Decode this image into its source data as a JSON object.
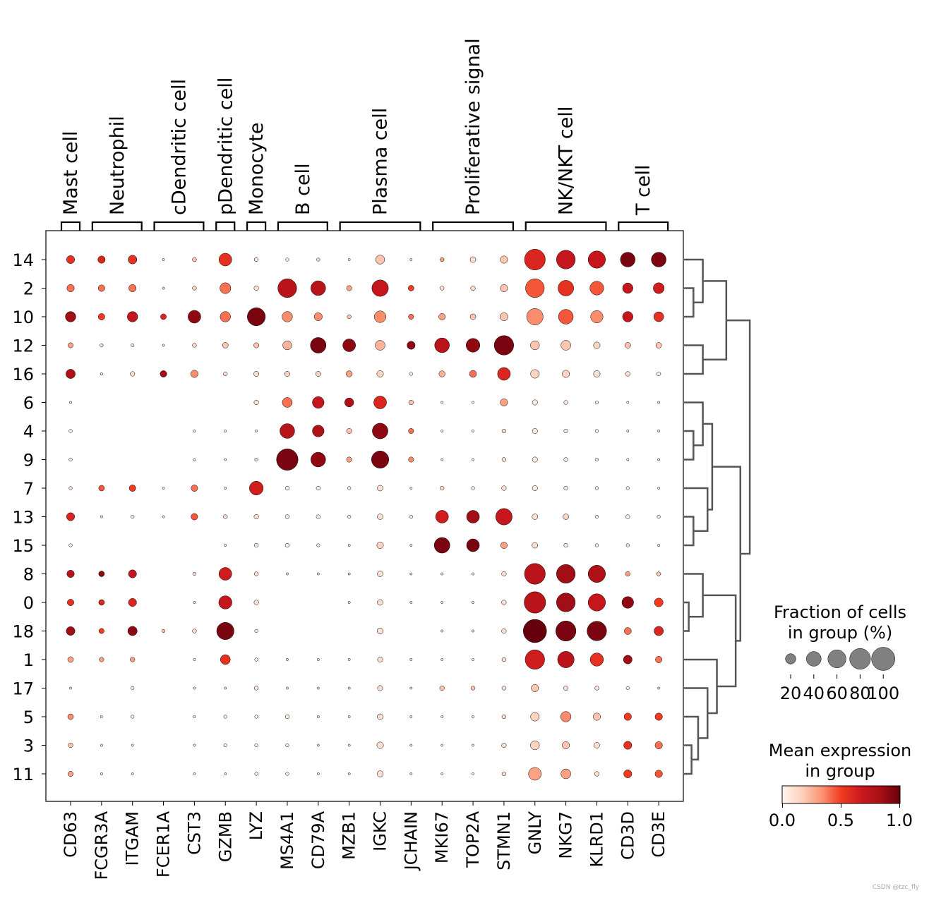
{
  "chart_data": {
    "type": "dotplot",
    "genes": [
      "CD63",
      "FCGR3A",
      "ITGAM",
      "FCER1A",
      "CST3",
      "GZMB",
      "LYZ",
      "MS4A1",
      "CD79A",
      "MZB1",
      "IGKC",
      "JCHAIN",
      "MKI67",
      "TOP2A",
      "STMN1",
      "GNLY",
      "NKG7",
      "KLRD1",
      "CD3D",
      "CD3E"
    ],
    "groups": [
      "14",
      "2",
      "10",
      "12",
      "16",
      "6",
      "4",
      "9",
      "7",
      "13",
      "15",
      "8",
      "0",
      "18",
      "1",
      "17",
      "5",
      "3",
      "11"
    ],
    "cell_types": [
      {
        "label": "Mast cell",
        "start": 0,
        "end": 0
      },
      {
        "label": "Neutrophil",
        "start": 1,
        "end": 2
      },
      {
        "label": "cDendritic cell",
        "start": 3,
        "end": 4
      },
      {
        "label": "pDendritic cell",
        "start": 5,
        "end": 5
      },
      {
        "label": "Monocyte",
        "start": 6,
        "end": 6
      },
      {
        "label": "B cell",
        "start": 7,
        "end": 8
      },
      {
        "label": "Plasma cell",
        "start": 9,
        "end": 11
      },
      {
        "label": "Proliferative signal",
        "start": 12,
        "end": 14
      },
      {
        "label": "NK/NKT cell",
        "start": 15,
        "end": 17
      },
      {
        "label": "T cell",
        "start": 18,
        "end": 19
      }
    ],
    "fraction_pct": [
      [
        12,
        10,
        14,
        1,
        3,
        30,
        3,
        2,
        2,
        1,
        15,
        1,
        3,
        6,
        10,
        80,
        65,
        55,
        40,
        40
      ],
      [
        10,
        8,
        10,
        1,
        3,
        22,
        4,
        65,
        40,
        5,
        50,
        6,
        3,
        4,
        10,
        65,
        45,
        35,
        20,
        22
      ],
      [
        20,
        8,
        20,
        6,
        30,
        20,
        60,
        20,
        12,
        3,
        25,
        5,
        8,
        6,
        12,
        50,
        40,
        28,
        20,
        18
      ],
      [
        5,
        2,
        2,
        1,
        3,
        6,
        5,
        15,
        45,
        30,
        18,
        12,
        40,
        35,
        70,
        15,
        18,
        8,
        6,
        6
      ],
      [
        16,
        1,
        4,
        8,
        10,
        3,
        5,
        5,
        5,
        7,
        8,
        2,
        7,
        9,
        30,
        14,
        10,
        8,
        4,
        3
      ],
      [
        1,
        0,
        0,
        0,
        0,
        0,
        4,
        18,
        25,
        15,
        30,
        4,
        1,
        1,
        10,
        5,
        3,
        2,
        1,
        1
      ],
      [
        2,
        0,
        0,
        0,
        1,
        1,
        1,
        40,
        25,
        5,
        45,
        5,
        1,
        1,
        3,
        5,
        3,
        2,
        1,
        1
      ],
      [
        2,
        0,
        0,
        0,
        1,
        1,
        2,
        85,
        40,
        5,
        55,
        5,
        1,
        1,
        3,
        5,
        3,
        2,
        1,
        1
      ],
      [
        2,
        6,
        8,
        1,
        8,
        1,
        35,
        3,
        3,
        2,
        6,
        1,
        3,
        2,
        4,
        5,
        3,
        2,
        2,
        1
      ],
      [
        12,
        1,
        2,
        1,
        8,
        3,
        4,
        3,
        3,
        2,
        6,
        2,
        30,
        30,
        50,
        6,
        6,
        2,
        3,
        2
      ],
      [
        2,
        0,
        0,
        0,
        0,
        1,
        3,
        3,
        2,
        1,
        8,
        1,
        45,
        30,
        8,
        6,
        3,
        2,
        2,
        1
      ],
      [
        10,
        6,
        12,
        0,
        2,
        30,
        3,
        1,
        1,
        1,
        6,
        1,
        1,
        1,
        4,
        80,
        65,
        55,
        4,
        3
      ],
      [
        8,
        6,
        12,
        0,
        1,
        32,
        4,
        0,
        0,
        1,
        6,
        1,
        1,
        1,
        4,
        85,
        65,
        55,
        25,
        14
      ],
      [
        14,
        5,
        16,
        2,
        3,
        55,
        2,
        0,
        0,
        0,
        7,
        0,
        1,
        1,
        4,
        100,
        75,
        70,
        9,
        16
      ],
      [
        6,
        4,
        4,
        0,
        1,
        18,
        2,
        1,
        1,
        1,
        5,
        1,
        1,
        1,
        3,
        70,
        50,
        32,
        14,
        8
      ],
      [
        1,
        0,
        2,
        0,
        1,
        1,
        3,
        1,
        1,
        1,
        5,
        1,
        4,
        3,
        3,
        10,
        4,
        3,
        2,
        1
      ],
      [
        6,
        1,
        2,
        0,
        1,
        2,
        2,
        3,
        1,
        1,
        6,
        1,
        1,
        1,
        3,
        14,
        20,
        10,
        10,
        10
      ],
      [
        4,
        1,
        1,
        0,
        1,
        2,
        2,
        2,
        1,
        1,
        8,
        1,
        1,
        1,
        4,
        15,
        10,
        6,
        12,
        10
      ],
      [
        5,
        1,
        1,
        0,
        1,
        1,
        2,
        2,
        1,
        1,
        7,
        1,
        1,
        1,
        3,
        30,
        18,
        4,
        12,
        10
      ]
    ],
    "mean_expression": [
      [
        0.55,
        0.6,
        0.55,
        0.05,
        0.2,
        0.55,
        0.1,
        0.05,
        0.1,
        0.05,
        0.2,
        0.05,
        0.3,
        0.1,
        0.2,
        0.6,
        0.7,
        0.7,
        0.95,
        0.95
      ],
      [
        0.4,
        0.4,
        0.4,
        0.05,
        0.15,
        0.4,
        0.1,
        0.75,
        0.75,
        0.3,
        0.7,
        0.5,
        0.1,
        0.1,
        0.2,
        0.45,
        0.55,
        0.45,
        0.7,
        0.65
      ],
      [
        0.85,
        0.5,
        0.7,
        0.6,
        0.9,
        0.4,
        0.95,
        0.35,
        0.35,
        0.2,
        0.35,
        0.4,
        0.3,
        0.2,
        0.2,
        0.35,
        0.45,
        0.35,
        0.7,
        0.55
      ],
      [
        0.3,
        0.1,
        0.1,
        0.05,
        0.1,
        0.2,
        0.2,
        0.25,
        0.95,
        0.9,
        0.25,
        0.9,
        0.75,
        0.9,
        0.95,
        0.2,
        0.2,
        0.15,
        0.2,
        0.2
      ],
      [
        0.8,
        0.1,
        0.1,
        0.85,
        0.35,
        0.1,
        0.1,
        0.15,
        0.15,
        0.3,
        0.15,
        0.05,
        0.25,
        0.4,
        0.6,
        0.15,
        0.15,
        0.1,
        0.1,
        0.05
      ],
      [
        0.05,
        0,
        0,
        0,
        0,
        0,
        0.1,
        0.4,
        0.7,
        0.8,
        0.6,
        0.2,
        0.05,
        0.05,
        0.3,
        0.05,
        0.05,
        0.05,
        0.05,
        0.05
      ],
      [
        0.05,
        0,
        0,
        0,
        0.05,
        0.05,
        0.05,
        0.75,
        0.8,
        0.2,
        0.9,
        0.4,
        0.05,
        0.05,
        0.1,
        0.05,
        0.05,
        0.05,
        0.05,
        0.05
      ],
      [
        0.05,
        0,
        0,
        0,
        0.05,
        0.05,
        0.1,
        0.95,
        0.9,
        0.3,
        0.95,
        0.35,
        0.05,
        0.05,
        0.1,
        0.05,
        0.05,
        0.05,
        0.05,
        0.05
      ],
      [
        0.1,
        0.45,
        0.5,
        0.05,
        0.4,
        0.05,
        0.65,
        0.05,
        0.05,
        0.05,
        0.1,
        0.05,
        0.1,
        0.05,
        0.1,
        0.05,
        0.05,
        0.05,
        0.05,
        0.05
      ],
      [
        0.6,
        0.05,
        0.05,
        0.05,
        0.45,
        0.1,
        0.1,
        0.05,
        0.05,
        0.05,
        0.1,
        0.05,
        0.65,
        0.85,
        0.7,
        0.1,
        0.15,
        0.05,
        0.05,
        0.05
      ],
      [
        0.05,
        0,
        0,
        0,
        0,
        0.05,
        0.05,
        0.05,
        0.05,
        0.05,
        0.15,
        0.05,
        0.95,
        0.95,
        0.3,
        0.1,
        0.05,
        0.05,
        0.05,
        0.05
      ],
      [
        0.75,
        0.9,
        0.7,
        0,
        0.1,
        0.65,
        0.1,
        0.05,
        0.05,
        0.05,
        0.1,
        0.05,
        0.05,
        0.05,
        0.1,
        0.75,
        0.85,
        0.8,
        0.3,
        0.2
      ],
      [
        0.55,
        0.6,
        0.6,
        0,
        0.05,
        0.7,
        0.1,
        0,
        0,
        0.05,
        0.1,
        0.05,
        0.05,
        0.05,
        0.1,
        0.75,
        0.85,
        0.7,
        0.9,
        0.5
      ],
      [
        0.85,
        0.5,
        0.9,
        0.2,
        0.1,
        0.95,
        0.05,
        0,
        0,
        0,
        0.1,
        0,
        0.05,
        0.05,
        0.1,
        1.0,
        0.95,
        0.95,
        0.4,
        0.6
      ],
      [
        0.3,
        0.3,
        0.3,
        0,
        0.05,
        0.55,
        0.05,
        0.05,
        0.05,
        0.05,
        0.1,
        0.05,
        0.05,
        0.05,
        0.1,
        0.65,
        0.75,
        0.55,
        0.85,
        0.4
      ],
      [
        0.05,
        0,
        0.05,
        0,
        0.05,
        0.05,
        0.1,
        0.05,
        0.05,
        0.05,
        0.1,
        0.05,
        0.2,
        0.2,
        0.1,
        0.2,
        0.1,
        0.1,
        0.05,
        0.05
      ],
      [
        0.35,
        0.05,
        0.05,
        0,
        0.05,
        0.05,
        0.05,
        0.05,
        0.05,
        0.05,
        0.1,
        0.05,
        0.05,
        0.05,
        0.1,
        0.15,
        0.35,
        0.2,
        0.5,
        0.5
      ],
      [
        0.2,
        0.05,
        0.05,
        0,
        0.05,
        0.05,
        0.05,
        0.05,
        0.05,
        0.05,
        0.1,
        0.05,
        0.05,
        0.05,
        0.1,
        0.15,
        0.2,
        0.1,
        0.55,
        0.4
      ],
      [
        0.3,
        0.05,
        0.05,
        0,
        0.05,
        0.05,
        0.05,
        0.05,
        0.05,
        0.05,
        0.1,
        0.05,
        0.05,
        0.05,
        0.1,
        0.3,
        0.3,
        0.1,
        0.5,
        0.45
      ]
    ],
    "dendrogram": [
      {
        "a": "10",
        "b": "2",
        "d": 1
      },
      {
        "a": "14",
        "b": "10+2",
        "d": 2
      },
      {
        "a": "12",
        "b": "16",
        "d": 2
      },
      {
        "a": "14+10+2",
        "b": "12+16",
        "d": 4.5
      },
      {
        "a": "4",
        "b": "9",
        "d": 1
      },
      {
        "a": "6",
        "b": "4+9",
        "d": 2
      },
      {
        "a": "13",
        "b": "15",
        "d": 1
      },
      {
        "a": "7",
        "b": "13+15",
        "d": 2.5
      },
      {
        "a": "6+4+9",
        "b": "7+13+15",
        "d": 3
      },
      {
        "a": "0",
        "b": "18",
        "d": 0.5
      },
      {
        "a": "8",
        "b": "0+18",
        "d": 2
      },
      {
        "a": "3",
        "b": "11",
        "d": 0.8
      },
      {
        "a": "5",
        "b": "3+11",
        "d": 1.5
      },
      {
        "a": "17",
        "b": "5+3+11",
        "d": 2.5
      },
      {
        "a": "1",
        "b": "17+5+3+11",
        "d": 3.5
      },
      {
        "a": "8+0+18",
        "b": "1+17+5+3+11",
        "d": 5.5
      },
      {
        "a": "6+4+9+7+13+15",
        "b": "8+0+18+1+17+5+3+11",
        "d": 6
      },
      {
        "a": "14+10+2+12+16",
        "b": "6+4+9+7+13+15+8+0+18+1+17+5+3+11",
        "d": 7
      }
    ],
    "size_legend": {
      "title_line1": "Fraction of cells",
      "title_line2": "in group (%)",
      "values": [
        20,
        40,
        60,
        80,
        100
      ]
    },
    "color_legend": {
      "title_line1": "Mean expression",
      "title_line2": "in group",
      "ticks": [
        "0.0",
        "0.5",
        "1.0"
      ],
      "range": [
        0,
        1
      ],
      "colors": [
        "#fff5f0",
        "#fdd0bc",
        "#fc9272",
        "#f03b20",
        "#cb181d",
        "#a50f15",
        "#67000d"
      ]
    }
  },
  "watermark": "CSDN @tzc_fly"
}
